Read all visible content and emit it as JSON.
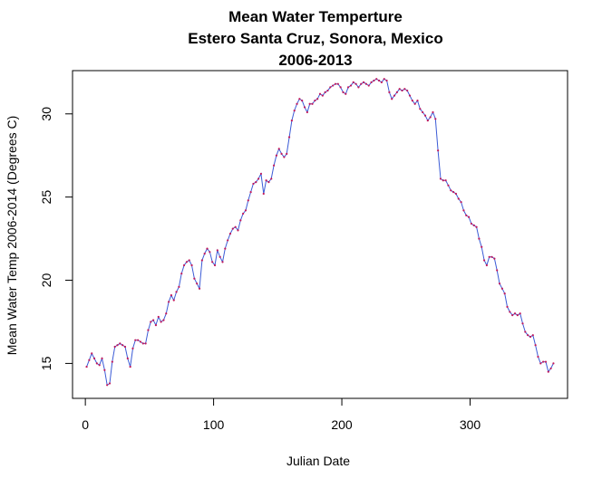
{
  "chart_data": {
    "type": "line",
    "title": [
      "Mean Water Temperture",
      "Estero Santa Cruz, Sonora, Mexico",
      "2006-2013"
    ],
    "xlabel": "Julian Date",
    "ylabel": "Mean Water Temp 2006-2014 (Degrees C)",
    "xlim": [
      -10,
      376
    ],
    "ylim": [
      12.9,
      32.6
    ],
    "xticks": [
      0,
      100,
      200,
      300
    ],
    "yticks": [
      15,
      20,
      25,
      30
    ],
    "grid": false,
    "series": [
      {
        "style": "line",
        "color": "#3b5bd6",
        "points_color": "#c2185b",
        "x": [
          1,
          3,
          5,
          7,
          9,
          11,
          13,
          15,
          17,
          19,
          21,
          23,
          25,
          27,
          29,
          31,
          33,
          35,
          37,
          39,
          41,
          43,
          45,
          47,
          49,
          51,
          53,
          55,
          57,
          59,
          61,
          63,
          65,
          67,
          69,
          71,
          73,
          75,
          77,
          79,
          81,
          83,
          85,
          87,
          89,
          91,
          93,
          95,
          97,
          99,
          101,
          103,
          105,
          107,
          109,
          111,
          113,
          115,
          117,
          119,
          121,
          123,
          125,
          127,
          129,
          131,
          133,
          135,
          137,
          139,
          141,
          143,
          145,
          147,
          149,
          151,
          153,
          155,
          157,
          159,
          161,
          163,
          165,
          167,
          169,
          171,
          173,
          175,
          177,
          179,
          181,
          183,
          185,
          187,
          189,
          191,
          193,
          195,
          197,
          199,
          201,
          203,
          205,
          207,
          209,
          211,
          213,
          215,
          217,
          219,
          221,
          223,
          225,
          227,
          229,
          231,
          233,
          235,
          237,
          239,
          241,
          243,
          245,
          247,
          249,
          251,
          253,
          255,
          257,
          259,
          261,
          263,
          265,
          267,
          269,
          271,
          273,
          275,
          277,
          279,
          281,
          283,
          285,
          287,
          289,
          291,
          293,
          295,
          297,
          299,
          301,
          303,
          305,
          307,
          309,
          311,
          313,
          315,
          317,
          319,
          321,
          323,
          325,
          327,
          329,
          331,
          333,
          335,
          337,
          339,
          341,
          343,
          345,
          347,
          349,
          351,
          353,
          355,
          357,
          359,
          361,
          363,
          365
        ],
        "y": [
          14.8,
          15.2,
          15.6,
          15.3,
          15.0,
          14.9,
          15.3,
          14.6,
          13.7,
          13.8,
          15.1,
          16.0,
          16.1,
          16.2,
          16.1,
          16.0,
          15.3,
          14.8,
          15.9,
          16.4,
          16.4,
          16.3,
          16.2,
          16.2,
          17.0,
          17.5,
          17.6,
          17.3,
          17.8,
          17.5,
          17.6,
          18.0,
          18.7,
          19.1,
          18.8,
          19.3,
          19.6,
          20.4,
          20.9,
          21.1,
          21.2,
          20.9,
          20.1,
          19.8,
          19.5,
          21.2,
          21.6,
          21.9,
          21.7,
          21.1,
          20.9,
          21.8,
          21.4,
          21.1,
          21.9,
          22.4,
          22.8,
          23.1,
          23.2,
          23.0,
          23.6,
          24.0,
          24.2,
          24.8,
          25.3,
          25.8,
          25.9,
          26.1,
          26.4,
          25.2,
          26.0,
          25.9,
          26.1,
          26.9,
          27.5,
          27.9,
          27.6,
          27.4,
          27.6,
          28.6,
          29.6,
          30.2,
          30.6,
          30.9,
          30.8,
          30.4,
          30.1,
          30.6,
          30.6,
          30.8,
          30.9,
          31.2,
          31.1,
          31.3,
          31.4,
          31.6,
          31.7,
          31.8,
          31.8,
          31.6,
          31.3,
          31.2,
          31.6,
          31.7,
          31.9,
          31.8,
          31.6,
          31.8,
          31.9,
          31.8,
          31.7,
          31.9,
          32.0,
          32.1,
          32.0,
          31.9,
          32.1,
          32.0,
          31.3,
          30.9,
          31.1,
          31.3,
          31.5,
          31.4,
          31.5,
          31.4,
          31.1,
          30.8,
          30.6,
          30.8,
          30.3,
          30.1,
          29.9,
          29.6,
          29.8,
          30.1,
          29.7,
          27.8,
          26.1,
          26.0,
          26.0,
          25.7,
          25.4,
          25.3,
          25.2,
          24.9,
          24.7,
          24.2,
          23.9,
          23.8,
          23.4,
          23.3,
          23.2,
          22.5,
          22.0,
          21.2,
          20.9,
          21.4,
          21.4,
          21.3,
          20.6,
          19.8,
          19.5,
          19.2,
          18.4,
          18.1,
          17.9,
          18.0,
          17.9,
          18.0,
          17.4,
          16.9,
          16.7,
          16.6,
          16.7,
          16.1,
          15.4,
          15.0,
          15.1,
          15.1,
          14.5,
          14.7,
          15.0
        ]
      }
    ]
  }
}
